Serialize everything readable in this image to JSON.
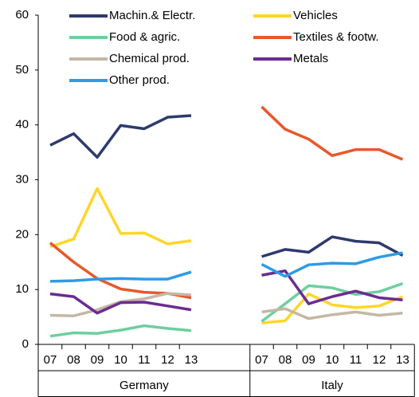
{
  "chart_data": {
    "type": "line",
    "categories": [
      "07",
      "08",
      "09",
      "10",
      "11",
      "12",
      "13",
      null,
      null,
      "07",
      "08",
      "09",
      "10",
      "11",
      "12",
      "13"
    ],
    "groups": [
      "Germany",
      "Italy"
    ],
    "ylim": [
      0,
      60
    ],
    "yticks": [
      0,
      10,
      20,
      30,
      40,
      50,
      60
    ],
    "grid": false,
    "series": [
      {
        "name": "Machin.& Electr.",
        "color": "#2e3a6e",
        "values": [
          36.3,
          38.4,
          34.1,
          39.9,
          39.3,
          41.4,
          41.7,
          null,
          null,
          16.0,
          17.3,
          16.8,
          19.6,
          18.8,
          18.5,
          16.2
        ]
      },
      {
        "name": "Vehicles",
        "color": "#ffd529",
        "values": [
          17.8,
          19.2,
          28.4,
          20.2,
          20.3,
          18.3,
          18.9,
          null,
          null,
          3.9,
          4.3,
          9.2,
          7.2,
          6.7,
          7.0,
          8.7
        ]
      },
      {
        "name": "Food & agric.",
        "color": "#6dcf9f",
        "values": [
          1.5,
          2.1,
          2.0,
          2.6,
          3.4,
          2.9,
          2.5,
          null,
          null,
          4.2,
          7.4,
          10.7,
          10.3,
          9.1,
          9.6,
          11.1
        ]
      },
      {
        "name": "Textiles & footw.",
        "color": "#e8582a",
        "values": [
          18.5,
          15.0,
          12.0,
          10.1,
          9.5,
          9.3,
          8.5,
          null,
          null,
          43.3,
          39.2,
          37.4,
          34.4,
          35.5,
          35.5,
          33.7
        ]
      },
      {
        "name": "Chemical prod.",
        "color": "#c4b7a6",
        "values": [
          5.3,
          5.2,
          6.3,
          7.8,
          8.3,
          9.3,
          9.0,
          null,
          null,
          5.9,
          6.5,
          4.7,
          5.4,
          5.9,
          5.3,
          5.7
        ]
      },
      {
        "name": "Metals",
        "color": "#6b2c91",
        "values": [
          9.2,
          8.7,
          5.7,
          7.6,
          7.7,
          7.0,
          6.3,
          null,
          null,
          12.6,
          13.4,
          7.4,
          8.7,
          9.7,
          8.5,
          8.1
        ]
      },
      {
        "name": "Other prod.",
        "color": "#2d9be6",
        "values": [
          11.5,
          11.6,
          11.9,
          12.0,
          11.9,
          11.9,
          13.2,
          null,
          null,
          14.6,
          12.4,
          14.5,
          14.8,
          14.7,
          15.9,
          16.7
        ]
      }
    ]
  }
}
